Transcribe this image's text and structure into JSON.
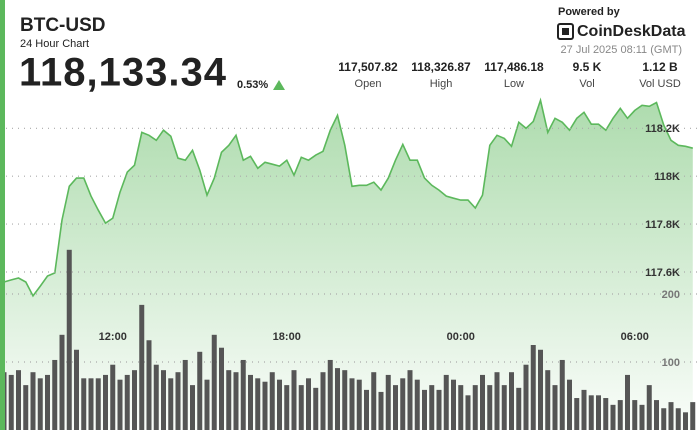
{
  "header": {
    "title": "BTC-USD",
    "subtitle": "24 Hour Chart",
    "price": "118,133.34",
    "change": "0.53%",
    "stats": [
      {
        "value": "117,507.82",
        "label": "Open"
      },
      {
        "value": "118,326.87",
        "label": "High"
      },
      {
        "value": "117,486.18",
        "label": "Low"
      },
      {
        "value": "9.5 K",
        "label": "Vol"
      },
      {
        "value": "1.12 B",
        "label": "Vol USD"
      }
    ],
    "powered_by": "Powered by",
    "brand": "CoinDeskData",
    "timestamp": "27 Jul 2025 08:11 (GMT)"
  },
  "chart_data": {
    "type": "line",
    "categories": [
      null,
      null,
      null,
      null,
      null,
      null,
      null,
      null,
      null,
      null,
      null,
      null,
      null,
      null,
      null,
      "12:00",
      null,
      null,
      null,
      null,
      null,
      null,
      null,
      null,
      null,
      null,
      null,
      null,
      null,
      null,
      null,
      null,
      null,
      null,
      null,
      null,
      null,
      null,
      null,
      "18:00",
      null,
      null,
      null,
      null,
      null,
      null,
      null,
      null,
      null,
      null,
      null,
      null,
      null,
      null,
      null,
      null,
      null,
      null,
      null,
      null,
      null,
      null,
      null,
      "00:00",
      null,
      null,
      null,
      null,
      null,
      null,
      null,
      null,
      null,
      null,
      null,
      null,
      null,
      null,
      null,
      null,
      null,
      null,
      null,
      null,
      null,
      null,
      null,
      "06:00",
      null,
      null,
      null,
      null,
      null,
      null,
      null,
      null
    ],
    "series": [
      {
        "color": "#5cb85c",
        "values": [
          117558,
          117567,
          117575,
          117558,
          117500,
          117541,
          117583,
          117596,
          117817,
          117958,
          117992,
          117992,
          117917,
          117858,
          117804,
          117825,
          117933,
          118017,
          118046,
          118183,
          118171,
          118150,
          118192,
          118167,
          118075,
          118067,
          118108,
          118025,
          117921,
          117992,
          118100,
          118129,
          118171,
          118067,
          118083,
          118033,
          118058,
          118050,
          118042,
          118067,
          118004,
          118079,
          118067,
          118088,
          118104,
          118192,
          118254,
          118129,
          117958,
          117962,
          117962,
          117975,
          117942,
          117992,
          118067,
          118133,
          118067,
          118067,
          117992,
          117962,
          117942,
          117917,
          117908,
          117900,
          117900,
          117867,
          117921,
          118129,
          118171,
          118158,
          118125,
          118225,
          118200,
          118229,
          118317,
          118183,
          118242,
          118225,
          118192,
          118242,
          118267,
          118217,
          118217,
          118192,
          118242,
          118283,
          118242,
          118275,
          118296,
          118292,
          118308,
          118213,
          118150,
          118129,
          118125,
          118117
        ]
      },
      {
        "color": "#555555",
        "axis": "y2",
        "type": "bar",
        "values": [
          85,
          81,
          88,
          66,
          85,
          76,
          81,
          103,
          140,
          265,
          118,
          76,
          76,
          76,
          81,
          96,
          74,
          81,
          88,
          184,
          132,
          96,
          88,
          76,
          85,
          103,
          66,
          115,
          74,
          140,
          121,
          88,
          85,
          103,
          81,
          76,
          71,
          85,
          74,
          66,
          88,
          66,
          76,
          62,
          85,
          103,
          91,
          88,
          76,
          74,
          59,
          85,
          56,
          81,
          66,
          76,
          88,
          74,
          59,
          66,
          59,
          81,
          74,
          66,
          51,
          66,
          81,
          66,
          85,
          66,
          85,
          62,
          96,
          125,
          118,
          88,
          66,
          103,
          74,
          47,
          59,
          51,
          51,
          47,
          37,
          44,
          81,
          44,
          37,
          66,
          44,
          32,
          41,
          32,
          26,
          41
        ]
      }
    ],
    "ylim": [
      116940,
      118360
    ],
    "yticks": [
      {
        "value": 117600,
        "label": "117.6K"
      },
      {
        "value": 117800,
        "label": "117.8K"
      },
      {
        "value": 118000,
        "label": "118K"
      },
      {
        "value": 118200,
        "label": "118.2K"
      }
    ],
    "y2lim": [
      0,
      500
    ],
    "y2ticks": [
      100,
      200
    ],
    "grid": true
  }
}
